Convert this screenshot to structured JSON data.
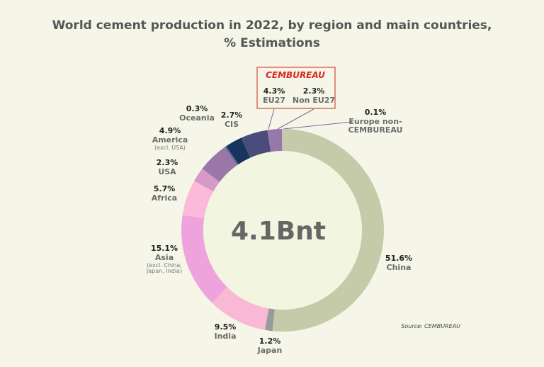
{
  "chart_data": {
    "type": "pie",
    "title": "World cement production in 2022, by region and main countries,",
    "subtitle": "% Estimations",
    "center_label": "4.1Bnt",
    "group_label": "CEMBUREAU",
    "source": "Source: CEMBUREAU",
    "categories": [
      "China",
      "Japan",
      "India",
      "Asia",
      "Africa",
      "USA",
      "America",
      "Oceania",
      "CIS",
      "EU27",
      "Non EU27",
      "Europe non-CEMBUREAU"
    ],
    "category_notes": [
      null,
      null,
      null,
      "(excl. China, Japan, India)",
      null,
      null,
      "(excl. USA)",
      null,
      null,
      null,
      null,
      null
    ],
    "values": [
      51.6,
      1.2,
      9.5,
      15.1,
      5.7,
      2.3,
      4.9,
      0.3,
      2.7,
      4.3,
      2.3,
      0.1
    ],
    "value_labels": [
      "51.6%",
      "1.2%",
      "9.5%",
      "15.1%",
      "5.7%",
      "2.3%",
      "4.9%",
      "0.3%",
      "2.7%",
      "4.3%",
      "2.3%",
      "0.1%"
    ],
    "colors": [
      "#c5cba8",
      "#9a9a9a",
      "#f9b9d5",
      "#eea3dc",
      "#fbbad9",
      "#d59ac6",
      "#9a77a9",
      "#5b6b8c",
      "#16345e",
      "#4b4c7c",
      "#9877ab",
      "#c8b5d8"
    ]
  }
}
